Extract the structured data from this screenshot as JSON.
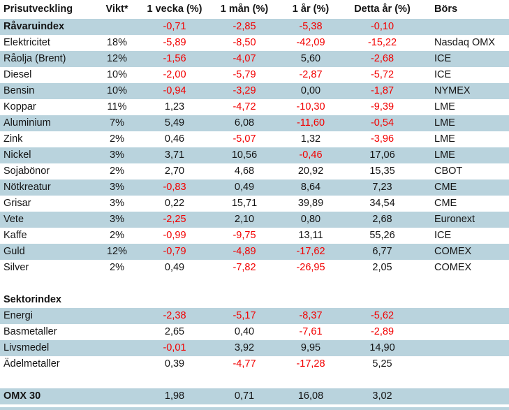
{
  "table": {
    "headers": [
      "Prisutveckling",
      "Vikt*",
      "1 vecka (%)",
      "1 mån (%)",
      "1 år (%)",
      "Detta år (%)",
      "Börs"
    ],
    "rows": [
      {
        "label": "Råvaruindex",
        "vikt": "",
        "w1": "-0,71",
        "m1": "-2,85",
        "y1": "-5,38",
        "ytd": "-0,10",
        "bors": "",
        "bold": true,
        "shaded": true
      },
      {
        "label": "Elektricitet",
        "vikt": "18%",
        "w1": "-5,89",
        "m1": "-8,50",
        "y1": "-42,09",
        "ytd": "-15,22",
        "bors": "Nasdaq OMX",
        "bold": false,
        "shaded": false
      },
      {
        "label": "Råolja (Brent)",
        "vikt": "12%",
        "w1": "-1,56",
        "m1": "-4,07",
        "y1": "5,60",
        "ytd": "-2,68",
        "bors": "ICE",
        "bold": false,
        "shaded": true
      },
      {
        "label": "Diesel",
        "vikt": "10%",
        "w1": "-2,00",
        "m1": "-5,79",
        "y1": "-2,87",
        "ytd": "-5,72",
        "bors": "ICE",
        "bold": false,
        "shaded": false
      },
      {
        "label": "Bensin",
        "vikt": "10%",
        "w1": "-0,94",
        "m1": "-3,29",
        "y1": "0,00",
        "ytd": "-1,87",
        "bors": "NYMEX",
        "bold": false,
        "shaded": true
      },
      {
        "label": "Koppar",
        "vikt": "11%",
        "w1": "1,23",
        "m1": "-4,72",
        "y1": "-10,30",
        "ytd": "-9,39",
        "bors": "LME",
        "bold": false,
        "shaded": false
      },
      {
        "label": "Aluminium",
        "vikt": "7%",
        "w1": "5,49",
        "m1": "6,08",
        "y1": "-11,60",
        "ytd": "-0,54",
        "bors": "LME",
        "bold": false,
        "shaded": true
      },
      {
        "label": "Zink",
        "vikt": "2%",
        "w1": "0,46",
        "m1": "-5,07",
        "y1": "1,32",
        "ytd": "-3,96",
        "bors": "LME",
        "bold": false,
        "shaded": false
      },
      {
        "label": "Nickel",
        "vikt": "3%",
        "w1": "3,71",
        "m1": "10,56",
        "y1": "-0,46",
        "ytd": "17,06",
        "bors": "LME",
        "bold": false,
        "shaded": true
      },
      {
        "label": "Sojabönor",
        "vikt": "2%",
        "w1": "2,70",
        "m1": "4,68",
        "y1": "20,92",
        "ytd": "15,35",
        "bors": "CBOT",
        "bold": false,
        "shaded": false
      },
      {
        "label": "Nötkreatur",
        "vikt": "3%",
        "w1": "-0,83",
        "m1": "0,49",
        "y1": "8,64",
        "ytd": "7,23",
        "bors": "CME",
        "bold": false,
        "shaded": true
      },
      {
        "label": "Grisar",
        "vikt": "3%",
        "w1": "0,22",
        "m1": "15,71",
        "y1": "39,89",
        "ytd": "34,54",
        "bors": "CME",
        "bold": false,
        "shaded": false
      },
      {
        "label": "Vete",
        "vikt": "3%",
        "w1": "-2,25",
        "m1": "2,10",
        "y1": "0,80",
        "ytd": "2,68",
        "bors": "Euronext",
        "bold": false,
        "shaded": true
      },
      {
        "label": "Kaffe",
        "vikt": "2%",
        "w1": "-0,99",
        "m1": "-9,75",
        "y1": "13,11",
        "ytd": "55,26",
        "bors": "ICE",
        "bold": false,
        "shaded": false
      },
      {
        "label": "Guld",
        "vikt": "12%",
        "w1": "-0,79",
        "m1": "-4,89",
        "y1": "-17,62",
        "ytd": "6,77",
        "bors": "COMEX",
        "bold": false,
        "shaded": true
      },
      {
        "label": "Silver",
        "vikt": "2%",
        "w1": "0,49",
        "m1": "-7,82",
        "y1": "-26,95",
        "ytd": "2,05",
        "bors": "COMEX",
        "bold": false,
        "shaded": false
      },
      {
        "type": "spacer",
        "shaded": false
      },
      {
        "label": "Sektorindex",
        "vikt": "",
        "w1": "",
        "m1": "",
        "y1": "",
        "ytd": "",
        "bors": "",
        "bold": true,
        "shaded": false
      },
      {
        "label": "Energi",
        "vikt": "",
        "w1": "-2,38",
        "m1": "-5,17",
        "y1": "-8,37",
        "ytd": "-5,62",
        "bors": "",
        "bold": false,
        "shaded": true
      },
      {
        "label": "Basmetaller",
        "vikt": "",
        "w1": "2,65",
        "m1": "0,40",
        "y1": "-7,61",
        "ytd": "-2,89",
        "bors": "",
        "bold": false,
        "shaded": false
      },
      {
        "label": "Livsmedel",
        "vikt": "",
        "w1": "-0,01",
        "m1": "3,92",
        "y1": "9,95",
        "ytd": "14,90",
        "bors": "",
        "bold": false,
        "shaded": true
      },
      {
        "label": "Ädelmetaller",
        "vikt": "",
        "w1": "0,39",
        "m1": "-4,77",
        "y1": "-17,28",
        "ytd": "5,25",
        "bors": "",
        "bold": false,
        "shaded": false
      },
      {
        "type": "spacer",
        "shaded": false
      },
      {
        "label": "OMX 30",
        "vikt": "",
        "w1": "1,98",
        "m1": "0,71",
        "y1": "16,08",
        "ytd": "3,02",
        "bors": "",
        "bold": true,
        "shaded": true
      }
    ]
  },
  "colors": {
    "row_shade": "#b9d3dd",
    "negative_text": "#f20000",
    "positive_text": "#141414"
  }
}
